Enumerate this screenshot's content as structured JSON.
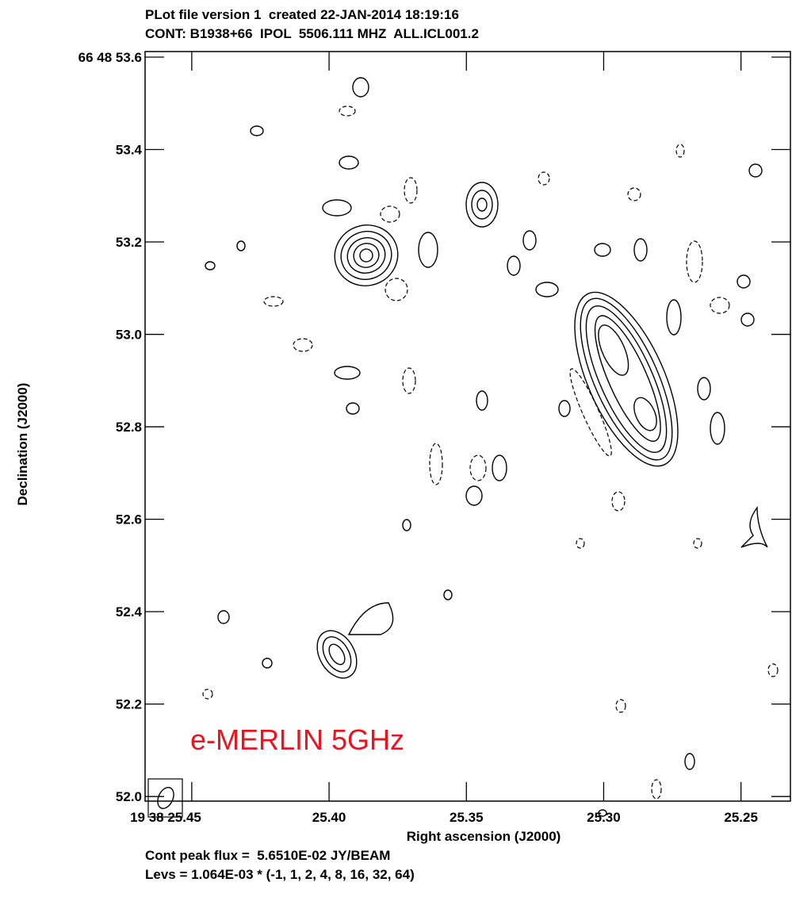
{
  "chart_data": {
    "type": "contour",
    "title": "PLot file version 1  created 22-JAN-2014 18:19:16",
    "subtitle": "CONT: B1938+66  IPOL  5506.111 MHZ  ALL.ICL001.2",
    "xlabel": "Right ascension (J2000)",
    "ylabel": "Declination (J2000)",
    "annotation": "e-MERLIN 5GHz",
    "footer": [
      "Cont peak flux =  5.6510E-02 JY/BEAM",
      "Levs = 1.064E-03 * (-1, 1, 2, 4, 8, 16, 32, 64)"
    ],
    "xlim": [
      25.467,
      25.232
    ],
    "xticks": [
      {
        "value": 25.45,
        "label": "19 38 25.45"
      },
      {
        "value": 25.4,
        "label": "25.40"
      },
      25.35,
      {
        "value": 25.3,
        "label": "25.30"
      },
      25.25
    ],
    "ylim": [
      51.99,
      53.612
    ],
    "yticks": [
      {
        "value": 53.6,
        "label": "66 48 53.6"
      },
      53.4,
      53.2,
      {
        "value": 53,
        "label": "53.0"
      },
      52.8,
      52.6,
      52.4,
      52.2,
      {
        "value": 52,
        "label": "52.0"
      }
    ]
  }
}
